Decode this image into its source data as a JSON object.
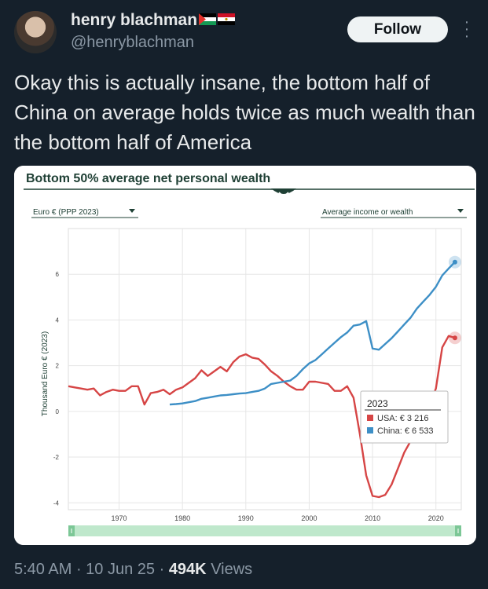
{
  "header": {
    "name": "henry blachman",
    "flags": [
      "palestine-flag",
      "egypt-flag"
    ],
    "handle": "@henryblachman",
    "follow_label": "Follow",
    "more_icon": "more-vertical-icon"
  },
  "tweet": {
    "text": "Okay this is actually insane, the bottom half of China on average holds twice as much wealth than the bottom half of America"
  },
  "chart_card": {
    "title": "Bottom 50% average net personal wealth",
    "currency_select": "Euro € (PPP 2023)",
    "measure_select": "Average income or wealth",
    "ylabel": "Thousand Euro € (2023)",
    "tooltip": {
      "year": "2023",
      "usa": "USA: € 3 216",
      "china": "China: € 6 533",
      "usa_color": "#d64545",
      "china_color": "#3d8fc6"
    }
  },
  "chart_data": {
    "type": "line",
    "title": "Bottom 50% average net personal wealth",
    "ylabel": "Thousand Euro € (2023)",
    "xlim": [
      1962,
      2024
    ],
    "ylim": [
      -4.3,
      8
    ],
    "yticks": [
      -4,
      -2,
      0,
      2,
      4,
      6
    ],
    "xticks": [
      1970,
      1980,
      1990,
      2000,
      2010,
      2020
    ],
    "series": [
      {
        "name": "USA",
        "color": "#d64545",
        "x": [
          1962,
          1963,
          1964,
          1965,
          1966,
          1967,
          1968,
          1969,
          1970,
          1971,
          1972,
          1973,
          1974,
          1975,
          1976,
          1977,
          1978,
          1979,
          1980,
          1981,
          1982,
          1983,
          1984,
          1985,
          1986,
          1987,
          1988,
          1989,
          1990,
          1991,
          1992,
          1993,
          1994,
          1995,
          1996,
          1997,
          1998,
          1999,
          2000,
          2001,
          2002,
          2003,
          2004,
          2005,
          2006,
          2007,
          2008,
          2009,
          2010,
          2011,
          2012,
          2013,
          2014,
          2015,
          2016,
          2017,
          2018,
          2019,
          2020,
          2021,
          2022,
          2023
        ],
        "values": [
          1.1,
          1.05,
          1.0,
          0.95,
          1.0,
          0.7,
          0.85,
          0.95,
          0.9,
          0.9,
          1.1,
          1.1,
          0.3,
          0.8,
          0.85,
          0.95,
          0.75,
          0.95,
          1.05,
          1.25,
          1.45,
          1.8,
          1.55,
          1.75,
          1.95,
          1.75,
          2.15,
          2.4,
          2.5,
          2.35,
          2.3,
          2.05,
          1.75,
          1.55,
          1.3,
          1.1,
          0.95,
          0.95,
          1.3,
          1.3,
          1.25,
          1.2,
          0.9,
          0.9,
          1.1,
          0.6,
          -1.0,
          -2.8,
          -3.7,
          -3.75,
          -3.65,
          -3.2,
          -2.5,
          -1.8,
          -1.3,
          -0.8,
          -0.4,
          0.3,
          1.0,
          2.8,
          3.3,
          3.216
        ]
      },
      {
        "name": "China",
        "color": "#3d8fc6",
        "x": [
          1978,
          1979,
          1980,
          1981,
          1982,
          1983,
          1984,
          1985,
          1986,
          1987,
          1988,
          1989,
          1990,
          1991,
          1992,
          1993,
          1994,
          1995,
          1996,
          1997,
          1998,
          1999,
          2000,
          2001,
          2002,
          2003,
          2004,
          2005,
          2006,
          2007,
          2008,
          2009,
          2010,
          2011,
          2012,
          2013,
          2014,
          2015,
          2016,
          2017,
          2018,
          2019,
          2020,
          2021,
          2022,
          2023
        ],
        "values": [
          0.3,
          0.32,
          0.35,
          0.4,
          0.45,
          0.55,
          0.6,
          0.65,
          0.7,
          0.72,
          0.75,
          0.78,
          0.8,
          0.85,
          0.9,
          1.0,
          1.2,
          1.25,
          1.3,
          1.35,
          1.55,
          1.85,
          2.1,
          2.25,
          2.5,
          2.75,
          3.0,
          3.25,
          3.45,
          3.75,
          3.8,
          3.95,
          2.75,
          2.7,
          2.95,
          3.2,
          3.5,
          3.8,
          4.1,
          4.5,
          4.8,
          5.1,
          5.45,
          5.95,
          6.25,
          6.533
        ]
      }
    ],
    "grid": true
  },
  "footer": {
    "time": "5:40 AM",
    "date": "10 Jun 25",
    "views_count": "494K",
    "views_label": "Views"
  }
}
